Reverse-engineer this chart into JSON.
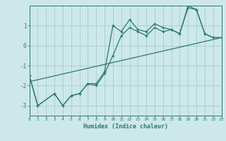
{
  "title": "",
  "xlabel": "Humidex (Indice chaleur)",
  "bg_color": "#cce8e8",
  "line_color": "#2d7a6e",
  "grid_color": "#aacccc",
  "xlim": [
    0,
    23
  ],
  "ylim": [
    -3.5,
    2.0
  ],
  "yticks": [
    -3,
    -2,
    -1,
    0,
    1
  ],
  "xticks": [
    0,
    1,
    2,
    3,
    4,
    5,
    6,
    7,
    8,
    9,
    10,
    11,
    12,
    13,
    14,
    15,
    16,
    17,
    18,
    19,
    20,
    21,
    22,
    23
  ],
  "series1_x": [
    0,
    1,
    3,
    4,
    5,
    6,
    7,
    8,
    9,
    10,
    11,
    12,
    13,
    14,
    15,
    16,
    17,
    18,
    19,
    20,
    21,
    22,
    23
  ],
  "series1_y": [
    -1.5,
    -3.0,
    -2.4,
    -3.0,
    -2.5,
    -2.4,
    -1.9,
    -1.9,
    -1.3,
    1.0,
    0.7,
    1.3,
    0.8,
    0.7,
    1.1,
    0.9,
    0.8,
    0.6,
    2.0,
    1.8,
    0.6,
    0.4,
    0.4
  ],
  "series2_x": [
    0,
    1,
    3,
    4,
    5,
    6,
    7,
    8,
    9,
    10,
    11,
    12,
    13,
    14,
    15,
    16,
    17,
    18,
    19,
    20,
    21,
    22,
    23
  ],
  "series2_y": [
    -1.5,
    -3.0,
    -2.4,
    -3.0,
    -2.5,
    -2.4,
    -1.9,
    -2.0,
    -1.4,
    -0.5,
    0.5,
    0.9,
    0.7,
    0.5,
    0.9,
    0.7,
    0.8,
    0.6,
    1.9,
    1.8,
    0.6,
    0.4,
    0.4
  ],
  "trend_x": [
    0,
    23
  ],
  "trend_y": [
    -1.8,
    0.4
  ]
}
